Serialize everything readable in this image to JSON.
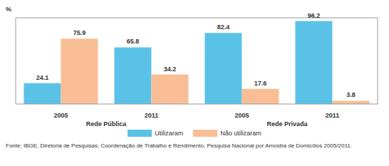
{
  "chart_data": {
    "type": "bar",
    "ylabel": "%",
    "categories": [
      "2005",
      "2011",
      "2005",
      "2011"
    ],
    "group_labels": [
      "Rede Pública",
      "Rede Privada"
    ],
    "series": [
      {
        "name": "Utilizaram",
        "color": "#5bc2e7",
        "values": [
          24.1,
          65.8,
          82.4,
          96.2
        ]
      },
      {
        "name": "Não utilizaram",
        "color": "#f9be95",
        "values": [
          75.9,
          34.2,
          17.6,
          3.8
        ]
      }
    ],
    "ylim": [
      0,
      100
    ],
    "tick_labels": "x",
    "data_labels": true,
    "grid": false,
    "annotations": [
      "Fonte: IBGE, Diretoria de Pesquisas, Coordenação de Trabalho e Rendimento, Pesquisa Nacional por Amostra de Domicílios 2005/2011."
    ]
  }
}
